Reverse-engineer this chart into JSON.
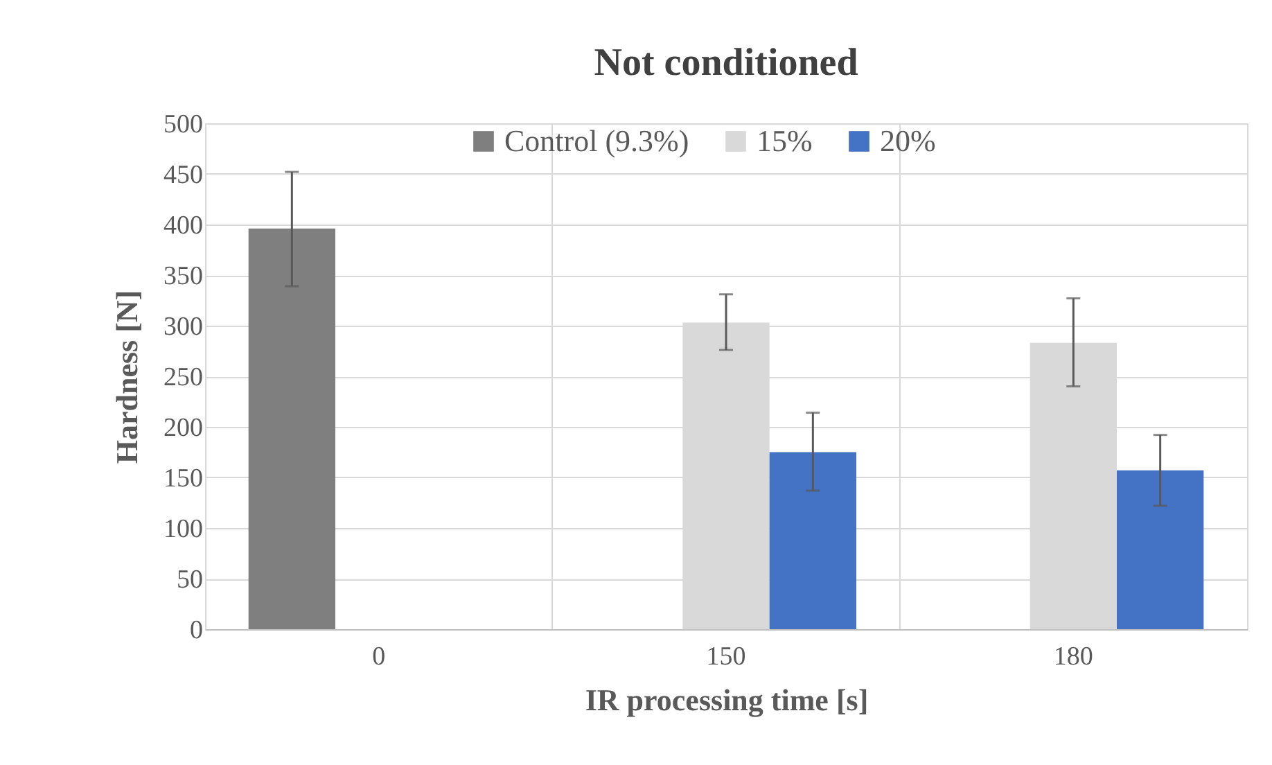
{
  "chart_data": {
    "type": "bar",
    "title": "Not conditioned",
    "xlabel": "IR processing time [s]",
    "ylabel": "Hardness [N]",
    "categories": [
      "0",
      "150",
      "180"
    ],
    "series": [
      {
        "name": "Control (9.3%)",
        "color": "#7f7f7f",
        "values": [
          396,
          null,
          null
        ],
        "errors": [
          [
            339,
            452
          ],
          null,
          null
        ]
      },
      {
        "name": "15%",
        "color": "#d9d9d9",
        "values": [
          0,
          303,
          283
        ],
        "errors": [
          null,
          [
            276,
            331
          ],
          [
            240,
            327
          ]
        ]
      },
      {
        "name": "20%",
        "color": "#4472c4",
        "values": [
          0,
          175,
          157
        ],
        "errors": [
          null,
          [
            137,
            214
          ],
          [
            122,
            192
          ]
        ]
      }
    ],
    "ylim": [
      0,
      500
    ],
    "yticks": [
      0,
      50,
      100,
      150,
      200,
      250,
      300,
      350,
      400,
      450,
      500
    ],
    "grid": true,
    "legend": "top"
  }
}
